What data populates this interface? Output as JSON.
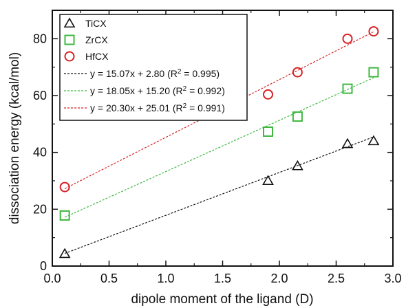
{
  "chart_data": {
    "type": "scatter",
    "xlabel": "dipole moment of the ligand (D)",
    "ylabel": "dissociation energy (kcal/mol)",
    "xlim": [
      0.0,
      3.0
    ],
    "ylim": [
      0,
      90
    ],
    "x_ticks": [
      "0.0",
      "0.5",
      "1.0",
      "1.5",
      "2.0",
      "2.5",
      "3.0"
    ],
    "y_ticks": [
      "0",
      "20",
      "40",
      "60",
      "80"
    ],
    "grid": false,
    "legend_position": "top-left",
    "series": [
      {
        "name": "TiCX",
        "marker": "triangle",
        "color": "#111111",
        "x": [
          0.11,
          1.9,
          2.16,
          2.6,
          2.83
        ],
        "y": [
          4.3,
          30.0,
          35.2,
          43.0,
          44.0
        ],
        "fit_label": "y = 15.07x + 2.80 (R",
        "fit_r2": " = 0.995)",
        "slope": 15.07,
        "intercept": 2.8
      },
      {
        "name": "ZrCX",
        "marker": "square",
        "color": "#3db83d",
        "x": [
          0.11,
          1.9,
          2.16,
          2.6,
          2.83
        ],
        "y": [
          17.8,
          47.3,
          52.6,
          62.4,
          68.2
        ],
        "fit_label": "y = 18.05x + 15.20 (R",
        "fit_r2": " = 0.992)",
        "slope": 18.05,
        "intercept": 15.2
      },
      {
        "name": "HfCX",
        "marker": "circle",
        "color": "#d62222",
        "x": [
          0.11,
          1.9,
          2.16,
          2.6,
          2.83
        ],
        "y": [
          27.8,
          60.4,
          68.2,
          80.0,
          82.6
        ],
        "fit_label": "y = 20.30x + 25.01 (R",
        "fit_r2": " = 0.991)",
        "slope": 20.3,
        "intercept": 25.01
      }
    ]
  }
}
